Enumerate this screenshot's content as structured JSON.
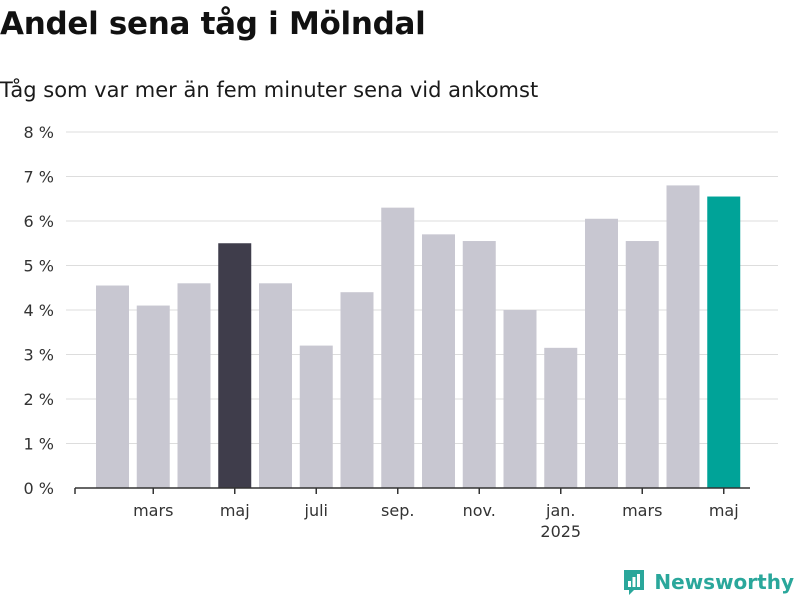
{
  "title": "Andel sena tåg i Mölndal",
  "subtitle": "Tåg som var mer än fem minuter sena vid ankomst",
  "brand": {
    "name": "Newsworthy",
    "icon": "bar-chart-flag-icon"
  },
  "colors": {
    "default_bar": "#c8c7d1",
    "highlight_bar": "#3f3d4b",
    "latest_bar": "#00a398",
    "grid": "#dddddd",
    "axis": "#333333",
    "brand": "#2aa79b"
  },
  "chart_data": {
    "type": "bar",
    "title": "Andel sena tåg i Mölndal",
    "subtitle": "Tåg som var mer än fem minuter sena vid ankomst",
    "categories": [
      "2024-02",
      "2024-03",
      "2024-04",
      "2024-05",
      "2024-06",
      "2024-07",
      "2024-08",
      "2024-09",
      "2024-10",
      "2024-11",
      "2024-12",
      "2025-01",
      "2025-02",
      "2025-03",
      "2025-04",
      "2025-05"
    ],
    "values": [
      4.55,
      4.1,
      4.6,
      5.5,
      4.6,
      3.2,
      4.4,
      6.3,
      5.7,
      5.55,
      4.0,
      3.15,
      6.05,
      5.55,
      6.8,
      6.55
    ],
    "highlight": {
      "2024-05": "highlight_bar",
      "2025-05": "latest_bar"
    },
    "ylim": [
      0,
      8
    ],
    "yticks": [
      0,
      1,
      2,
      3,
      4,
      5,
      6,
      7,
      8
    ],
    "ytick_labels": [
      "0 %",
      "1 %",
      "2 %",
      "3 %",
      "4 %",
      "5 %",
      "6 %",
      "7 %",
      "8 %"
    ],
    "xtick_labels": [
      {
        "category": "2024-03",
        "label": "mars"
      },
      {
        "category": "2024-05",
        "label": "maj"
      },
      {
        "category": "2024-07",
        "label": "juli"
      },
      {
        "category": "2024-09",
        "label": "sep."
      },
      {
        "category": "2024-11",
        "label": "nov."
      },
      {
        "category": "2025-01",
        "label": "jan.",
        "sublabel": "2025"
      },
      {
        "category": "2025-03",
        "label": "mars"
      },
      {
        "category": "2025-05",
        "label": "maj"
      }
    ],
    "xlabel": "",
    "ylabel": "",
    "grid": true
  }
}
